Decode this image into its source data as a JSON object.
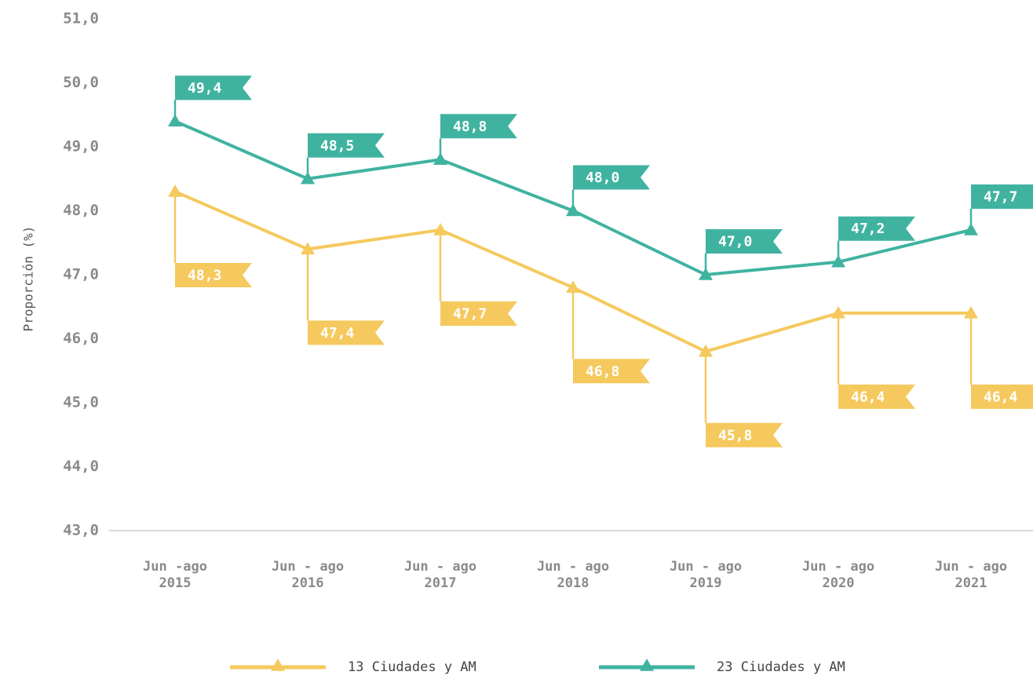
{
  "chart_data": {
    "type": "line",
    "y_label": "Proporción (%)",
    "categories": [
      "Jun -ago\n2015",
      "Jun - ago\n2016",
      "Jun - ago\n2017",
      "Jun - ago\n2018",
      "Jun - ago\n2019",
      "Jun - ago\n2020",
      "Jun - ago\n2021"
    ],
    "series": [
      {
        "name": "13 Ciudades y AM",
        "color": "#f5c95e",
        "values": [
          48.3,
          47.4,
          47.7,
          46.8,
          45.8,
          46.4,
          46.4
        ],
        "value_labels": [
          "48,3",
          "47,4",
          "47,7",
          "46,8",
          "45,8",
          "46,4",
          "46,4"
        ]
      },
      {
        "name": "23 Ciudades y AM",
        "color": "#3fb3a0",
        "values": [
          49.4,
          48.5,
          48.8,
          48.0,
          47.0,
          47.2,
          47.7
        ],
        "value_labels": [
          "49,4",
          "48,5",
          "48,8",
          "48,0",
          "47,0",
          "47,2",
          "47,7"
        ]
      }
    ],
    "ylim": [
      43,
      51
    ],
    "yticks": [
      {
        "value": 43,
        "label": "43,0"
      },
      {
        "value": 44,
        "label": "44,0"
      },
      {
        "value": 45,
        "label": "45,0"
      },
      {
        "value": 46,
        "label": "46,0"
      },
      {
        "value": 47,
        "label": "47,0"
      },
      {
        "value": 48,
        "label": "48,0"
      },
      {
        "value": 49,
        "label": "49,0"
      },
      {
        "value": 50,
        "label": "50,0"
      },
      {
        "value": 51,
        "label": "51,0"
      }
    ],
    "grid": false,
    "legend": "bottom"
  }
}
